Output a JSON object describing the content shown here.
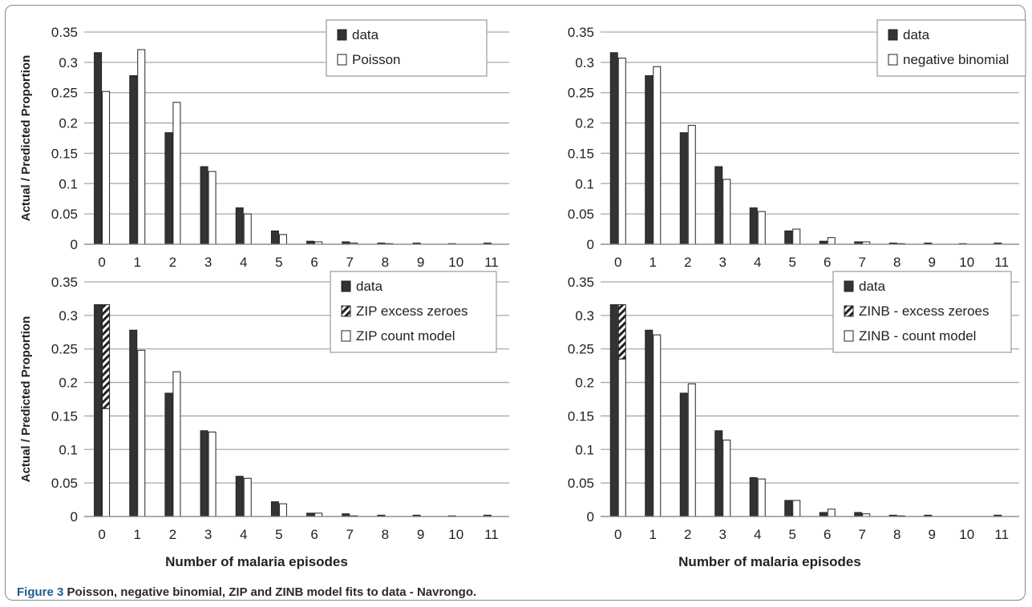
{
  "figure": {
    "caption_label": "Figure 3",
    "caption_text": "Poisson, negative binomial, ZIP and ZINB model fits to data - Navrongo."
  },
  "colors": {
    "data": "#333333",
    "model": "#ffffff",
    "stroke": "#222222",
    "grid": "#a8a8a8"
  },
  "chart_data": [
    {
      "type": "bar",
      "ylabel": "Actual / Predicted Proportion",
      "xlabel": "",
      "ylim": [
        0,
        0.35
      ],
      "yticks": [
        "0",
        "0.05",
        "0.1",
        "0.15",
        "0.2",
        "0.25",
        "0.3",
        "0.35"
      ],
      "categories": [
        "0",
        "1",
        "2",
        "3",
        "4",
        "5",
        "6",
        "7",
        "8",
        "9",
        "10",
        "11"
      ],
      "grid": true,
      "legend_position": "top-right",
      "series": [
        {
          "name": "data",
          "style": "solid",
          "values": [
            0.316,
            0.278,
            0.184,
            0.128,
            0.06,
            0.022,
            0.005,
            0.004,
            0.002,
            0.002,
            0.001,
            0.002
          ]
        },
        {
          "name": "Poisson",
          "style": "open",
          "values": [
            0.252,
            0.321,
            0.234,
            0.12,
            0.05,
            0.016,
            0.004,
            0.002,
            0.001,
            0.0,
            0.0,
            0.0
          ]
        }
      ]
    },
    {
      "type": "bar",
      "ylabel": "",
      "xlabel": "",
      "ylim": [
        0,
        0.35
      ],
      "yticks": [
        "0",
        "0.05",
        "0.1",
        "0.15",
        "0.2",
        "0.25",
        "0.3",
        "0.35"
      ],
      "categories": [
        "0",
        "1",
        "2",
        "3",
        "4",
        "5",
        "6",
        "7",
        "8",
        "9",
        "10",
        "11"
      ],
      "grid": true,
      "legend_position": "top-right",
      "series": [
        {
          "name": "data",
          "style": "solid",
          "values": [
            0.316,
            0.278,
            0.184,
            0.128,
            0.06,
            0.022,
            0.005,
            0.004,
            0.002,
            0.002,
            0.001,
            0.002
          ]
        },
        {
          "name": "negative binomial",
          "style": "open",
          "values": [
            0.307,
            0.293,
            0.196,
            0.107,
            0.054,
            0.025,
            0.011,
            0.004,
            0.001,
            0.0,
            0.0,
            0.0
          ]
        }
      ]
    },
    {
      "type": "bar",
      "ylabel": "Actual / Predicted Proportion",
      "xlabel": "Number of malaria episodes",
      "ylim": [
        0,
        0.35
      ],
      "yticks": [
        "0",
        "0.05",
        "0.1",
        "0.15",
        "0.2",
        "0.25",
        "0.3",
        "0.35"
      ],
      "categories": [
        "0",
        "1",
        "2",
        "3",
        "4",
        "5",
        "6",
        "7",
        "8",
        "9",
        "10",
        "11"
      ],
      "grid": true,
      "legend_position": "top-right",
      "stacked_model": true,
      "series": [
        {
          "name": "data",
          "style": "solid",
          "values": [
            0.316,
            0.278,
            0.184,
            0.128,
            0.06,
            0.022,
            0.005,
            0.004,
            0.002,
            0.002,
            0.001,
            0.002
          ]
        },
        {
          "name": "ZIP excess zeroes",
          "style": "hatched",
          "values": [
            0.155,
            0,
            0,
            0,
            0,
            0,
            0,
            0,
            0,
            0,
            0,
            0
          ]
        },
        {
          "name": "ZIP count model",
          "style": "open",
          "values": [
            0.161,
            0.248,
            0.216,
            0.126,
            0.057,
            0.019,
            0.005,
            0.001,
            0.0,
            0.0,
            0.0,
            0.0
          ]
        }
      ]
    },
    {
      "type": "bar",
      "ylabel": "",
      "xlabel": "Number of malaria episodes",
      "ylim": [
        0,
        0.35
      ],
      "yticks": [
        "0",
        "0.05",
        "0.1",
        "0.15",
        "0.2",
        "0.25",
        "0.3",
        "0.35"
      ],
      "categories": [
        "0",
        "1",
        "2",
        "3",
        "4",
        "5",
        "6",
        "7",
        "8",
        "9",
        "10",
        "11"
      ],
      "grid": true,
      "legend_position": "top-right",
      "stacked_model": true,
      "series": [
        {
          "name": "data",
          "style": "solid",
          "values": [
            0.316,
            0.278,
            0.184,
            0.128,
            0.058,
            0.024,
            0.006,
            0.006,
            0.002,
            0.002,
            0.0,
            0.002
          ]
        },
        {
          "name": "ZINB - excess zeroes",
          "style": "hatched",
          "values": [
            0.081,
            0,
            0,
            0,
            0,
            0,
            0,
            0,
            0,
            0,
            0,
            0
          ]
        },
        {
          "name": "ZINB - count model",
          "style": "open",
          "values": [
            0.235,
            0.271,
            0.198,
            0.114,
            0.056,
            0.024,
            0.011,
            0.004,
            0.001,
            0.0,
            0.0,
            0.0
          ]
        }
      ]
    }
  ]
}
